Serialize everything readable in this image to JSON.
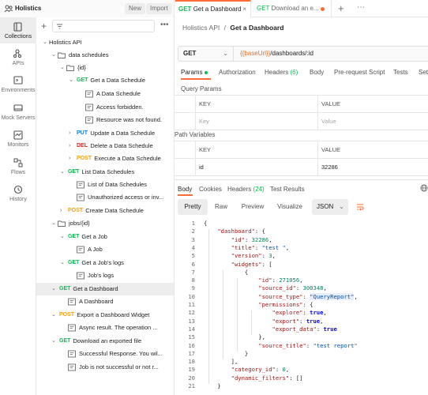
{
  "workspace": {
    "name": "Holistics",
    "new_label": "New",
    "import_label": "Import"
  },
  "tabs": [
    {
      "method": "GET",
      "title": "Get a Dashboard",
      "active": true
    },
    {
      "method": "GET",
      "title": "Download an e...",
      "active": false,
      "unsaved": true
    }
  ],
  "rail": [
    {
      "label": "Collections",
      "icon": "collections-icon",
      "active": true
    },
    {
      "label": "APIs",
      "icon": "apis-icon"
    },
    {
      "label": "Environments",
      "icon": "environments-icon"
    },
    {
      "label": "Mock Servers",
      "icon": "mock-servers-icon"
    },
    {
      "label": "Monitors",
      "icon": "monitors-icon"
    },
    {
      "label": "Flows",
      "icon": "flows-icon"
    },
    {
      "label": "History",
      "icon": "history-icon"
    }
  ],
  "tree": [
    {
      "type": "collection",
      "label": "Holistics API",
      "depth": 0
    },
    {
      "type": "folder",
      "label": "data schedules",
      "depth": 1
    },
    {
      "type": "folder",
      "label": "{id}",
      "depth": 2
    },
    {
      "type": "request",
      "method": "GET",
      "label": "Get a Data Schedule",
      "depth": 3,
      "expanded": true
    },
    {
      "type": "example",
      "label": "A Data Schedule",
      "depth": 4
    },
    {
      "type": "example",
      "label": "Access forbidden.",
      "depth": 4
    },
    {
      "type": "example",
      "label": "Resource was not found.",
      "depth": 4
    },
    {
      "type": "request",
      "method": "PUT",
      "label": "Update a Data Schedule",
      "depth": 3
    },
    {
      "type": "request",
      "method": "DEL",
      "label": "Delete a Data Schedule",
      "depth": 3
    },
    {
      "type": "request",
      "method": "POST",
      "label": "Execute a Data Schedule",
      "depth": 3
    },
    {
      "type": "request",
      "method": "GET",
      "label": "List Data Schedules",
      "depth": 2,
      "expanded": true
    },
    {
      "type": "example",
      "label": "List of Data Schedules",
      "depth": 3
    },
    {
      "type": "example",
      "label": "Unauthorized access or inv...",
      "depth": 3
    },
    {
      "type": "request",
      "method": "POST",
      "label": "Create Data Schedule",
      "depth": 2
    },
    {
      "type": "folder",
      "label": "jobs/{id}",
      "depth": 1
    },
    {
      "type": "request",
      "method": "GET",
      "label": "Get a Job",
      "depth": 2,
      "expanded": true
    },
    {
      "type": "example",
      "label": "A Job",
      "depth": 3
    },
    {
      "type": "request",
      "method": "GET",
      "label": "Get a Job's logs",
      "depth": 2,
      "expanded": true
    },
    {
      "type": "example",
      "label": "Job's logs",
      "depth": 3
    },
    {
      "type": "request",
      "method": "GET",
      "label": "Get a Dashboard",
      "depth": 1,
      "expanded": true,
      "selected": true
    },
    {
      "type": "example",
      "label": "A Dashboard",
      "depth": 2
    },
    {
      "type": "request",
      "method": "POST",
      "label": "Export a Dashboard Widget",
      "depth": 1,
      "expanded": true
    },
    {
      "type": "example",
      "label": "Async result. The operation ...",
      "depth": 2
    },
    {
      "type": "request",
      "method": "GET",
      "label": "Download an exported file",
      "depth": 1,
      "expanded": true
    },
    {
      "type": "example",
      "label": "Successful Response. You wil...",
      "depth": 2
    },
    {
      "type": "example",
      "label": "Job is not successful or not r...",
      "depth": 2
    }
  ],
  "breadcrumb": {
    "parent": "Holistics API",
    "separator": "/",
    "current": "Get a Dashboard"
  },
  "request": {
    "method": "GET",
    "url_var": "{{baseUrl}}",
    "url_path": "/dashboards/:id"
  },
  "request_tabs": [
    {
      "label": "Params",
      "active": true,
      "dot": true
    },
    {
      "label": "Authorization"
    },
    {
      "label": "Headers",
      "count": "(6)"
    },
    {
      "label": "Body"
    },
    {
      "label": "Pre-request Script"
    },
    {
      "label": "Tests"
    },
    {
      "label": "Set"
    }
  ],
  "query_params": {
    "title": "Query Params",
    "key_header": "KEY",
    "value_header": "VALUE",
    "key_placeholder": "Key",
    "value_placeholder": "Value"
  },
  "path_variables": {
    "title": "Path Variables",
    "key_header": "KEY",
    "value_header": "VALUE",
    "rows": [
      {
        "key": "id",
        "value": "32286"
      }
    ]
  },
  "response_tabs": [
    {
      "label": "Body",
      "active": true
    },
    {
      "label": "Cookies"
    },
    {
      "label": "Headers",
      "count": "(24)"
    },
    {
      "label": "Test Results"
    }
  ],
  "format_bar": {
    "pretty": "Pretty",
    "raw": "Raw",
    "preview": "Preview",
    "visualize": "Visualize",
    "format": "JSON"
  },
  "code_lines": [
    "{",
    "    \"dashboard\": {",
    "        \"id\": 32286,",
    "        \"title\": \"test \",",
    "        \"version\": 3,",
    "        \"widgets\": [",
    "            {",
    "                \"id\": 271056,",
    "                \"source_id\": 300348,",
    "                \"source_type\": \"QueryReport\",",
    "                \"permissions\": {",
    "                    \"explore\": true,",
    "                    \"export\": true,",
    "                    \"export_data\": true",
    "                },",
    "                \"source_title\": \"test report\"",
    "            }",
    "        ],",
    "        \"category_id\": 0,",
    "        \"dynamic_filters\": []",
    "    }"
  ]
}
